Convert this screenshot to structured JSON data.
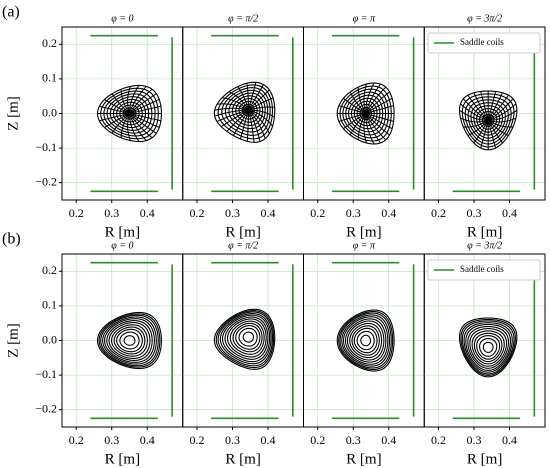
{
  "chart_data": [
    {
      "type": "flux",
      "panel_label": "(a)",
      "title": "φ = 0",
      "xlabel": "R [m]",
      "ylabel": "Z [m]",
      "xlim": [
        0.16,
        0.5
      ],
      "ylim": [
        -0.25,
        0.25
      ],
      "xticks": [
        0.2,
        0.3,
        0.4
      ],
      "yticks": [
        {
          "value": -0.2,
          "label": "−0.2"
        },
        {
          "value": -0.1,
          "label": "−0.1"
        },
        {
          "value": 0,
          "label": "0.0"
        },
        0.1,
        0.2
      ],
      "ytick_labels": true,
      "grid": true,
      "grid_color": "#c6e4c6",
      "axis_R": 0.35,
      "axis_Z": 0,
      "minor_radius": 0.09,
      "elongation": 0.9,
      "triangularity": -0.3,
      "tilt": 0,
      "levels": [
        0.1,
        0.2,
        0.3,
        0.4,
        0.5,
        0.6,
        0.7,
        0.8,
        0.9,
        1.0
      ],
      "spokes": 24,
      "line_color": "#000000",
      "coil_color": "#2e8b2e",
      "coils": [
        [
          0.24,
          0.225,
          0.43,
          0.225
        ],
        [
          0.24,
          -0.225,
          0.43,
          -0.225
        ],
        [
          0.47,
          0.22,
          0.47,
          -0.22
        ]
      ]
    },
    {
      "type": "flux",
      "title": "φ = π/2",
      "xlabel": "R [m]",
      "xlim": [
        0.16,
        0.5
      ],
      "ylim": [
        -0.25,
        0.25
      ],
      "xticks": [
        0.2,
        0.3,
        0.4
      ],
      "yticks": [
        {
          "value": -0.2,
          "label": "−0.2"
        },
        {
          "value": -0.1,
          "label": "−0.1"
        },
        {
          "value": 0,
          "label": "0.0"
        },
        0.1,
        0.2
      ],
      "ytick_labels": false,
      "grid": true,
      "grid_color": "#c6e4c6",
      "axis_R": 0.345,
      "axis_Z": 0.01,
      "minor_radius": 0.085,
      "elongation": 1.0,
      "triangularity": 0.35,
      "tilt": 60,
      "levels": [
        0.1,
        0.2,
        0.3,
        0.4,
        0.5,
        0.6,
        0.7,
        0.8,
        0.9,
        1.0
      ],
      "spokes": 24,
      "line_color": "#000000",
      "coil_color": "#2e8b2e",
      "coils": [
        [
          0.24,
          0.225,
          0.43,
          0.225
        ],
        [
          0.24,
          -0.225,
          0.43,
          -0.225
        ],
        [
          0.47,
          0.22,
          0.47,
          -0.22
        ]
      ]
    },
    {
      "type": "flux",
      "title": "φ = π",
      "xlabel": "R [m]",
      "xlim": [
        0.16,
        0.5
      ],
      "ylim": [
        -0.25,
        0.25
      ],
      "xticks": [
        0.2,
        0.3,
        0.4
      ],
      "yticks": [
        {
          "value": -0.2,
          "label": "−0.2"
        },
        {
          "value": -0.1,
          "label": "−0.1"
        },
        {
          "value": 0,
          "label": "0.0"
        },
        0.1,
        0.2
      ],
      "ytick_labels": false,
      "grid": true,
      "grid_color": "#c6e4c6",
      "axis_R": 0.335,
      "axis_Z": 0,
      "minor_radius": 0.08,
      "elongation": 1.1,
      "triangularity": 0.3,
      "tilt": 180,
      "levels": [
        0.1,
        0.2,
        0.3,
        0.4,
        0.5,
        0.6,
        0.7,
        0.8,
        0.9,
        1.0
      ],
      "spokes": 24,
      "line_color": "#000000",
      "coil_color": "#2e8b2e",
      "coils": [
        [
          0.24,
          0.225,
          0.43,
          0.225
        ],
        [
          0.24,
          -0.225,
          0.43,
          -0.225
        ],
        [
          0.47,
          0.22,
          0.47,
          -0.22
        ]
      ]
    },
    {
      "type": "flux",
      "title": "φ = 3π/2",
      "xlabel": "R [m]",
      "xlim": [
        0.16,
        0.5
      ],
      "ylim": [
        -0.25,
        0.25
      ],
      "xticks": [
        0.2,
        0.3,
        0.4
      ],
      "yticks": [
        {
          "value": -0.2,
          "label": "−0.2"
        },
        {
          "value": -0.1,
          "label": "−0.1"
        },
        {
          "value": 0,
          "label": "0.0"
        },
        0.1,
        0.2
      ],
      "ytick_labels": false,
      "grid": true,
      "grid_color": "#c6e4c6",
      "axis_R": 0.34,
      "axis_Z": -0.02,
      "minor_radius": 0.085,
      "elongation": 0.95,
      "triangularity": 0.35,
      "tilt": -90,
      "levels": [
        0.1,
        0.2,
        0.3,
        0.4,
        0.5,
        0.6,
        0.7,
        0.8,
        0.9,
        1.0
      ],
      "spokes": 24,
      "line_color": "#000000",
      "coil_color": "#2e8b2e",
      "coils": [
        [
          0.24,
          0.225,
          0.43,
          0.225
        ],
        [
          0.24,
          -0.225,
          0.43,
          -0.225
        ],
        [
          0.47,
          0.22,
          0.47,
          -0.22
        ]
      ],
      "legend": "upper right",
      "legend_label": "Saddle coils"
    },
    {
      "type": "flux",
      "panel_label": "(b)",
      "title": "φ = 0",
      "xlabel": "R [m]",
      "ylabel": "Z [m]",
      "xlim": [
        0.16,
        0.5
      ],
      "ylim": [
        -0.25,
        0.25
      ],
      "xticks": [
        0.2,
        0.3,
        0.4
      ],
      "yticks": [
        {
          "value": -0.2,
          "label": "−0.2"
        },
        {
          "value": -0.1,
          "label": "−0.1"
        },
        {
          "value": 0,
          "label": "0.0"
        },
        0.1,
        0.2
      ],
      "ytick_labels": true,
      "grid": true,
      "grid_color": "#c6e4c6",
      "axis_R": 0.35,
      "axis_Z": 0,
      "minor_radius": 0.09,
      "elongation": 0.9,
      "triangularity": -0.3,
      "tilt": 0,
      "levels": [
        0.17,
        0.3,
        0.4,
        0.48,
        0.56,
        0.64,
        0.71,
        0.78,
        0.84,
        0.9,
        0.95,
        1.0
      ],
      "line_color": "#000000",
      "coil_color": "#2e8b2e",
      "coils": [
        [
          0.24,
          0.225,
          0.43,
          0.225
        ],
        [
          0.24,
          -0.225,
          0.43,
          -0.225
        ],
        [
          0.47,
          0.22,
          0.47,
          -0.22
        ]
      ]
    },
    {
      "type": "flux",
      "title": "φ = π/2",
      "xlabel": "R [m]",
      "xlim": [
        0.16,
        0.5
      ],
      "ylim": [
        -0.25,
        0.25
      ],
      "xticks": [
        0.2,
        0.3,
        0.4
      ],
      "yticks": [
        {
          "value": -0.2,
          "label": "−0.2"
        },
        {
          "value": -0.1,
          "label": "−0.1"
        },
        {
          "value": 0,
          "label": "0.0"
        },
        0.1,
        0.2
      ],
      "ytick_labels": false,
      "grid": true,
      "grid_color": "#c6e4c6",
      "axis_R": 0.345,
      "axis_Z": 0.01,
      "minor_radius": 0.085,
      "elongation": 1.0,
      "triangularity": 0.35,
      "tilt": 60,
      "levels": [
        0.17,
        0.3,
        0.4,
        0.48,
        0.56,
        0.64,
        0.71,
        0.78,
        0.84,
        0.9,
        0.95,
        1.0
      ],
      "line_color": "#000000",
      "coil_color": "#2e8b2e",
      "coils": [
        [
          0.24,
          0.225,
          0.43,
          0.225
        ],
        [
          0.24,
          -0.225,
          0.43,
          -0.225
        ],
        [
          0.47,
          0.22,
          0.47,
          -0.22
        ]
      ]
    },
    {
      "type": "flux",
      "title": "φ = π",
      "xlabel": "R [m]",
      "xlim": [
        0.16,
        0.5
      ],
      "ylim": [
        -0.25,
        0.25
      ],
      "xticks": [
        0.2,
        0.3,
        0.4
      ],
      "yticks": [
        {
          "value": -0.2,
          "label": "−0.2"
        },
        {
          "value": -0.1,
          "label": "−0.1"
        },
        {
          "value": 0,
          "label": "0.0"
        },
        0.1,
        0.2
      ],
      "ytick_labels": false,
      "grid": true,
      "grid_color": "#c6e4c6",
      "axis_R": 0.335,
      "axis_Z": 0,
      "minor_radius": 0.08,
      "elongation": 1.1,
      "triangularity": 0.3,
      "tilt": 180,
      "levels": [
        0.17,
        0.3,
        0.4,
        0.48,
        0.56,
        0.64,
        0.71,
        0.78,
        0.84,
        0.9,
        0.95,
        1.0
      ],
      "line_color": "#000000",
      "coil_color": "#2e8b2e",
      "coils": [
        [
          0.24,
          0.225,
          0.43,
          0.225
        ],
        [
          0.24,
          -0.225,
          0.43,
          -0.225
        ],
        [
          0.47,
          0.22,
          0.47,
          -0.22
        ]
      ]
    },
    {
      "type": "flux",
      "title": "φ = 3π/2",
      "xlabel": "R [m]",
      "xlim": [
        0.16,
        0.5
      ],
      "ylim": [
        -0.25,
        0.25
      ],
      "xticks": [
        0.2,
        0.3,
        0.4
      ],
      "yticks": [
        {
          "value": -0.2,
          "label": "−0.2"
        },
        {
          "value": -0.1,
          "label": "−0.1"
        },
        {
          "value": 0,
          "label": "0.0"
        },
        0.1,
        0.2
      ],
      "ytick_labels": false,
      "grid": true,
      "grid_color": "#c6e4c6",
      "axis_R": 0.34,
      "axis_Z": -0.02,
      "minor_radius": 0.085,
      "elongation": 0.95,
      "triangularity": 0.35,
      "tilt": -90,
      "levels": [
        0.17,
        0.3,
        0.4,
        0.48,
        0.56,
        0.64,
        0.71,
        0.78,
        0.84,
        0.9,
        0.95,
        1.0
      ],
      "line_color": "#000000",
      "coil_color": "#2e8b2e",
      "coils": [
        [
          0.24,
          0.225,
          0.43,
          0.225
        ],
        [
          0.24,
          -0.225,
          0.43,
          -0.225
        ],
        [
          0.47,
          0.22,
          0.47,
          -0.22
        ]
      ],
      "legend": "upper right",
      "legend_label": "Saddle coils"
    }
  ]
}
